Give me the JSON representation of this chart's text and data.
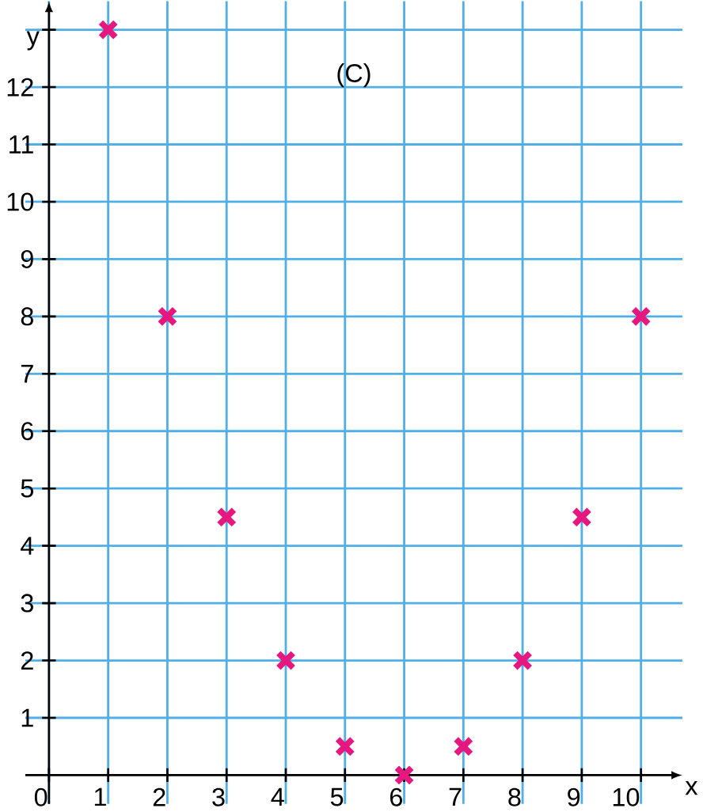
{
  "chart_data": {
    "type": "scatter",
    "xlabel": "x",
    "ylabel": "y",
    "annotations": [
      "(C)"
    ],
    "x": [
      1,
      2,
      3,
      4,
      5,
      6,
      7,
      8,
      9,
      10
    ],
    "series": [
      {
        "color": "#e6177f",
        "values": [
          13,
          8,
          4.5,
          2,
          0.5,
          0,
          0.5,
          2,
          4.5,
          8
        ]
      }
    ],
    "xlim": [
      -0.4,
      10.7
    ],
    "ylim": [
      -0.5,
      13.5
    ],
    "xticks": [
      0,
      1,
      2,
      3,
      4,
      5,
      6,
      7,
      8,
      9,
      10
    ],
    "yticks": [
      1,
      2,
      3,
      4,
      5,
      6,
      7,
      8,
      9,
      10,
      11,
      12,
      {
        "value": 13,
        "label": null
      }
    ],
    "grid": true,
    "marker": "cross"
  }
}
